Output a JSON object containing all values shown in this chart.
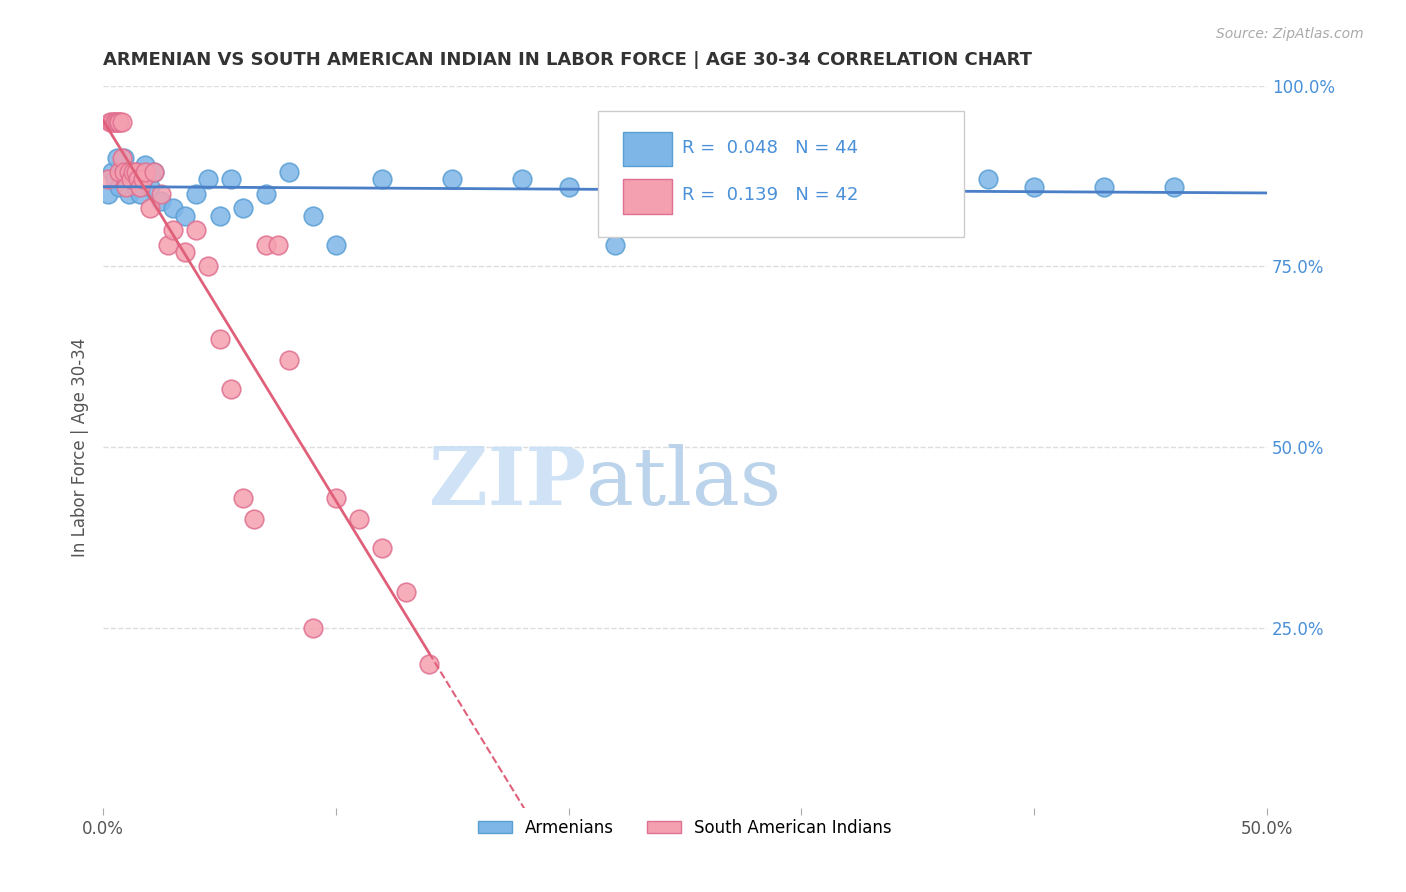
{
  "title": "ARMENIAN VS SOUTH AMERICAN INDIAN IN LABOR FORCE | AGE 30-34 CORRELATION CHART",
  "source": "Source: ZipAtlas.com",
  "ylabel": "In Labor Force | Age 30-34",
  "xlim": [
    0.0,
    0.5
  ],
  "ylim": [
    0.0,
    1.0
  ],
  "armenian_color": "#7eb6e8",
  "armenian_edge": "#5a9fd4",
  "south_american_color": "#f5a0b0",
  "south_american_edge": "#e07090",
  "trend_armenian_color": "#4a7ec7",
  "trend_south_american_color": "#e0607a",
  "R_armenian": 0.048,
  "N_armenian": 44,
  "R_south_american": 0.139,
  "N_south_american": 42,
  "armenian_x": [
    0.002,
    0.004,
    0.005,
    0.006,
    0.007,
    0.008,
    0.009,
    0.01,
    0.011,
    0.012,
    0.013,
    0.014,
    0.015,
    0.016,
    0.017,
    0.018,
    0.02,
    0.022,
    0.025,
    0.03,
    0.035,
    0.04,
    0.045,
    0.05,
    0.055,
    0.06,
    0.07,
    0.08,
    0.09,
    0.1,
    0.12,
    0.15,
    0.18,
    0.2,
    0.22,
    0.25,
    0.28,
    0.3,
    0.32,
    0.35,
    0.38,
    0.4,
    0.43,
    0.46
  ],
  "armenian_y": [
    0.85,
    0.88,
    0.87,
    0.9,
    0.86,
    0.88,
    0.9,
    0.87,
    0.85,
    0.88,
    0.87,
    0.86,
    0.88,
    0.85,
    0.87,
    0.89,
    0.86,
    0.88,
    0.84,
    0.83,
    0.82,
    0.85,
    0.87,
    0.82,
    0.87,
    0.83,
    0.85,
    0.88,
    0.82,
    0.78,
    0.87,
    0.87,
    0.87,
    0.86,
    0.78,
    0.87,
    0.83,
    0.87,
    0.87,
    0.86,
    0.87,
    0.86,
    0.86,
    0.86
  ],
  "south_american_x": [
    0.002,
    0.003,
    0.004,
    0.005,
    0.005,
    0.006,
    0.007,
    0.007,
    0.007,
    0.008,
    0.008,
    0.009,
    0.01,
    0.011,
    0.012,
    0.013,
    0.014,
    0.015,
    0.016,
    0.017,
    0.018,
    0.02,
    0.022,
    0.025,
    0.028,
    0.03,
    0.035,
    0.04,
    0.045,
    0.05,
    0.055,
    0.06,
    0.065,
    0.07,
    0.075,
    0.08,
    0.09,
    0.1,
    0.11,
    0.12,
    0.13,
    0.14
  ],
  "south_american_y": [
    0.87,
    0.95,
    0.95,
    0.95,
    0.95,
    0.95,
    0.95,
    0.95,
    0.88,
    0.95,
    0.9,
    0.88,
    0.86,
    0.88,
    0.87,
    0.88,
    0.88,
    0.87,
    0.86,
    0.87,
    0.88,
    0.83,
    0.88,
    0.85,
    0.78,
    0.8,
    0.77,
    0.8,
    0.75,
    0.65,
    0.58,
    0.43,
    0.4,
    0.78,
    0.78,
    0.62,
    0.25,
    0.43,
    0.4,
    0.36,
    0.3,
    0.2
  ],
  "watermark_zip": "ZIP",
  "watermark_atlas": "atlas",
  "background_color": "#ffffff",
  "grid_color": "#dddddd",
  "title_color": "#333333",
  "axis_label_color": "#555555",
  "right_axis_color": "#4a90d9",
  "legend_text_color": "#4a90d9"
}
